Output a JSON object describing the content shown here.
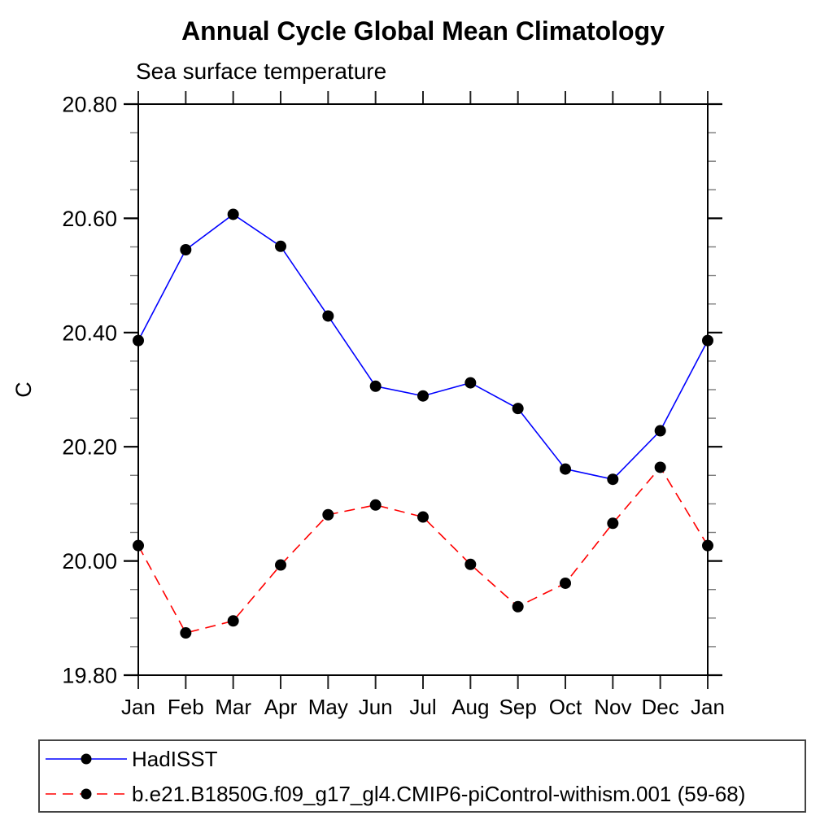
{
  "chart_data": {
    "type": "line",
    "title": "Annual Cycle Global Mean Climatology",
    "subtitle": "Sea surface temperature",
    "x": [
      "Jan",
      "Feb",
      "Mar",
      "Apr",
      "May",
      "Jun",
      "Jul",
      "Aug",
      "Sep",
      "Oct",
      "Nov",
      "Dec",
      "Jan"
    ],
    "xlabel": "",
    "ylabel": "C",
    "ylim": [
      19.8,
      20.8
    ],
    "ytick_labels": [
      "19.80",
      "20.00",
      "20.20",
      "20.40",
      "20.60",
      "20.80"
    ],
    "ytick_values": [
      19.8,
      20.0,
      20.2,
      20.4,
      20.6,
      20.8
    ],
    "yminor_step": 0.05,
    "grid": false,
    "legend_position": "bottom-left-box",
    "series": [
      {
        "name": "HadISST",
        "color": "#0000ff",
        "line_style": "solid",
        "marker": "filled-circle",
        "marker_color": "#000000",
        "values": [
          20.386,
          20.545,
          20.607,
          20.551,
          20.429,
          20.306,
          20.289,
          20.312,
          20.267,
          20.161,
          20.143,
          20.228,
          20.386
        ]
      },
      {
        "name": "b.e21.B1850G.f09_g17_gl4.CMIP6-piControl-withism.001 (59-68)",
        "color": "#ff0000",
        "line_style": "dashed",
        "marker": "filled-circle",
        "marker_color": "#000000",
        "values": [
          20.027,
          19.874,
          19.895,
          19.993,
          20.081,
          20.098,
          20.077,
          19.994,
          19.92,
          19.961,
          20.066,
          20.164,
          20.027
        ]
      }
    ]
  }
}
